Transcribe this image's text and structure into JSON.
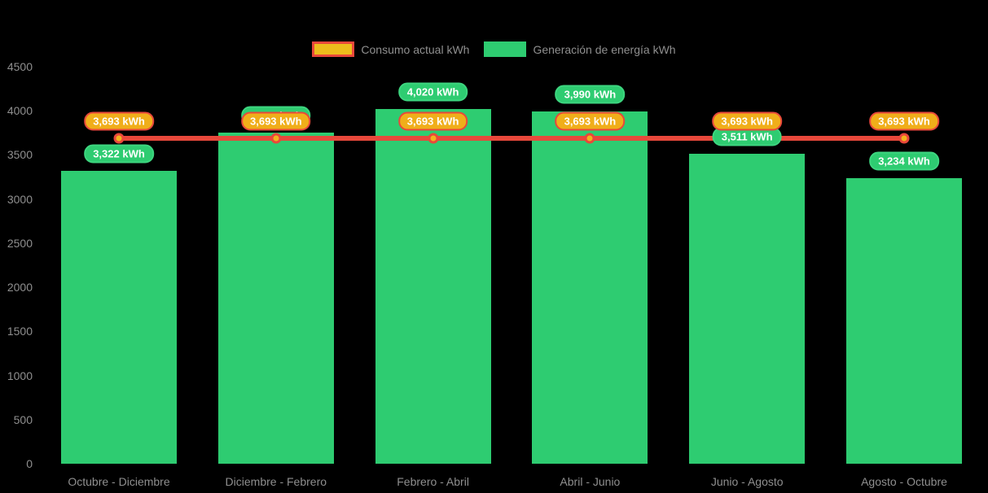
{
  "chart_data": {
    "type": "bar",
    "title": "",
    "xlabel": "",
    "ylabel": "",
    "categories": [
      "Octubre - Diciembre",
      "Diciembre - Febrero",
      "Febrero - Abril",
      "Abril - Junio",
      "Junio - Agosto",
      "Agosto - Octubre"
    ],
    "series": [
      {
        "name": "Consumo actual kWh",
        "type": "line",
        "values": [
          3693,
          3693,
          3693,
          3693,
          3693,
          3693
        ],
        "labels": [
          "3,693 kWh",
          "3,693 kWh",
          "3,693 kWh",
          "3,693 kWh",
          "3,693 kWh",
          "3,693 kWh"
        ]
      },
      {
        "name": "Generación de energía kWh",
        "type": "bar",
        "values": [
          3322,
          3755,
          4020,
          3990,
          3511,
          3234
        ],
        "labels": [
          "3,322 kWh",
          "3,755 kWh",
          "4,020 kWh",
          "3,990 kWh",
          "3,511 kWh",
          "3,234 kWh"
        ]
      }
    ],
    "ylim": [
      0,
      4500
    ],
    "yticks": [
      0,
      500,
      1000,
      1500,
      2000,
      2500,
      3000,
      3500,
      4000,
      4500
    ],
    "grid": false,
    "legend_position": "top",
    "colors": {
      "background": "#000000",
      "bar_fill": "#2ecc71",
      "bar_label_fill": "#2ecc71",
      "line_stroke": "#e8483b",
      "point_fill": "#f3b31e",
      "line_label_fill": "#f0ae1a",
      "line_label_border": "#e8483b",
      "label_text": "#ffffff",
      "axis_text": "#8f8f8f"
    }
  }
}
